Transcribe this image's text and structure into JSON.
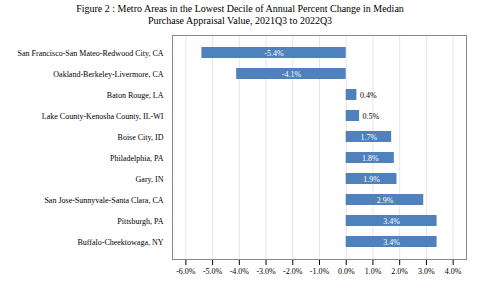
{
  "chart_data": {
    "type": "bar",
    "orientation": "horizontal",
    "title": "Figure 2 : Metro Areas in the Lowest Decile of Annual Percent Change in Median\nPurchase Appraisal Value, 2021Q3 to 2022Q3",
    "categories": [
      "Buffalo-Cheektowaga, NY",
      "Pittsburgh, PA",
      "San Jose-Sunnyvale-Santa Clara, CA",
      "Gary, IN",
      "Philadelphia, PA",
      "Boise City, ID",
      "Lake County-Kenosha County, IL-WI",
      "Baton Rouge, LA",
      "Oakland-Berkeley-Livermore, CA",
      "San Francisco-San Mateo-Redwood City, CA"
    ],
    "values": [
      3.4,
      3.4,
      2.9,
      1.9,
      1.8,
      1.7,
      0.5,
      0.4,
      -4.1,
      -5.4
    ],
    "value_labels": [
      "3.4%",
      "3.4%",
      "2.9%",
      "1.9%",
      "1.8%",
      "1.7%",
      "0.5%",
      "0.4%",
      "-4.1%",
      "-5.4%"
    ],
    "color": "#4f81bd",
    "xlim": [
      -6.5,
      4.5
    ],
    "xticks": [
      {
        "value": -6.0,
        "label": "-6.0%"
      },
      {
        "value": -5.0,
        "label": "-5.0%"
      },
      {
        "value": -4.0,
        "label": "-4.0%"
      },
      {
        "value": -3.0,
        "label": "-3.0%"
      },
      {
        "value": -2.0,
        "label": "-2.0%"
      },
      {
        "value": -1.0,
        "label": "-1.0%"
      },
      {
        "value": 0.0,
        "label": "0.0%"
      },
      {
        "value": 1.0,
        "label": "1.0%"
      },
      {
        "value": 2.0,
        "label": "2.0%"
      },
      {
        "value": 3.0,
        "label": "3.0%"
      },
      {
        "value": 4.0,
        "label": "4.0%"
      }
    ],
    "grid": true,
    "data_labels": true
  }
}
